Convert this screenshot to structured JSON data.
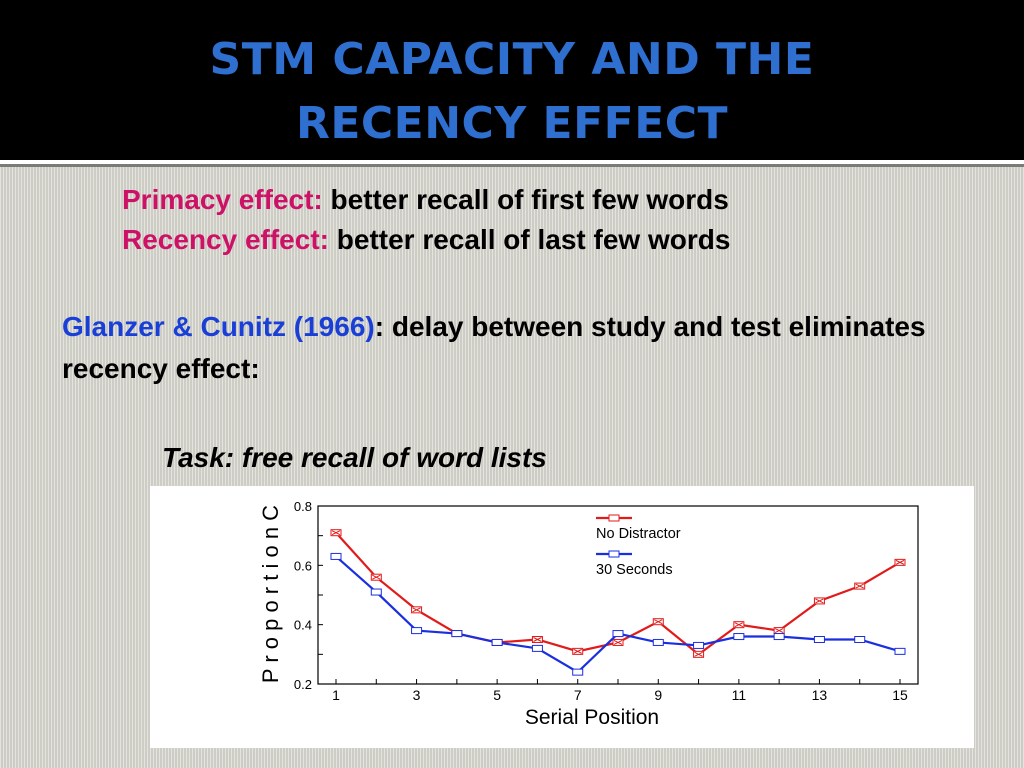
{
  "slide": {
    "title_line1": "STM CAPACITY AND THE",
    "title_line2": "RECENCY EFFECT",
    "primacy_label": "Primacy effect:",
    "primacy_text": " better recall of first few words",
    "recency_label": "Recency effect:",
    "recency_text": " better recall of last few words",
    "study_ref": "Glanzer & Cunitz (1966)",
    "study_text": ": delay between study and test eliminates recency effect",
    "study_end": ":",
    "task": "Task: free recall of word lists"
  },
  "colors": {
    "title": "#2f6fd0",
    "label": "#cc1166",
    "reference": "#1a3fd6",
    "series_no_distractor": "#e11a1a",
    "series_30_seconds": "#1a2fe0"
  },
  "chart_data": {
    "type": "line",
    "xlabel": "Serial Position",
    "ylabel": "P r o p o r t i o n C",
    "xlim": [
      1,
      15
    ],
    "ylim": [
      0.2,
      0.8
    ],
    "x": [
      1,
      2,
      3,
      4,
      5,
      6,
      7,
      8,
      9,
      10,
      11,
      12,
      13,
      14,
      15
    ],
    "x_ticks": [
      "1",
      "3",
      "5",
      "7",
      "9",
      "11",
      "13",
      "15"
    ],
    "y_ticks": [
      "0.2",
      "0.4",
      "0.6",
      "0.8"
    ],
    "legend_position": "top-right",
    "series": [
      {
        "name": "No Distractor",
        "color": "#e11a1a",
        "marker": "x-box",
        "values": [
          0.71,
          0.56,
          0.45,
          0.37,
          0.34,
          0.35,
          0.31,
          0.34,
          0.41,
          0.3,
          0.4,
          0.38,
          0.48,
          0.53,
          0.61
        ]
      },
      {
        "name": "30 Seconds",
        "color": "#1a2fe0",
        "marker": "open-square",
        "values": [
          0.63,
          0.51,
          0.38,
          0.37,
          0.34,
          0.32,
          0.24,
          0.37,
          0.34,
          0.33,
          0.36,
          0.36,
          0.35,
          0.35,
          0.31
        ]
      }
    ]
  }
}
